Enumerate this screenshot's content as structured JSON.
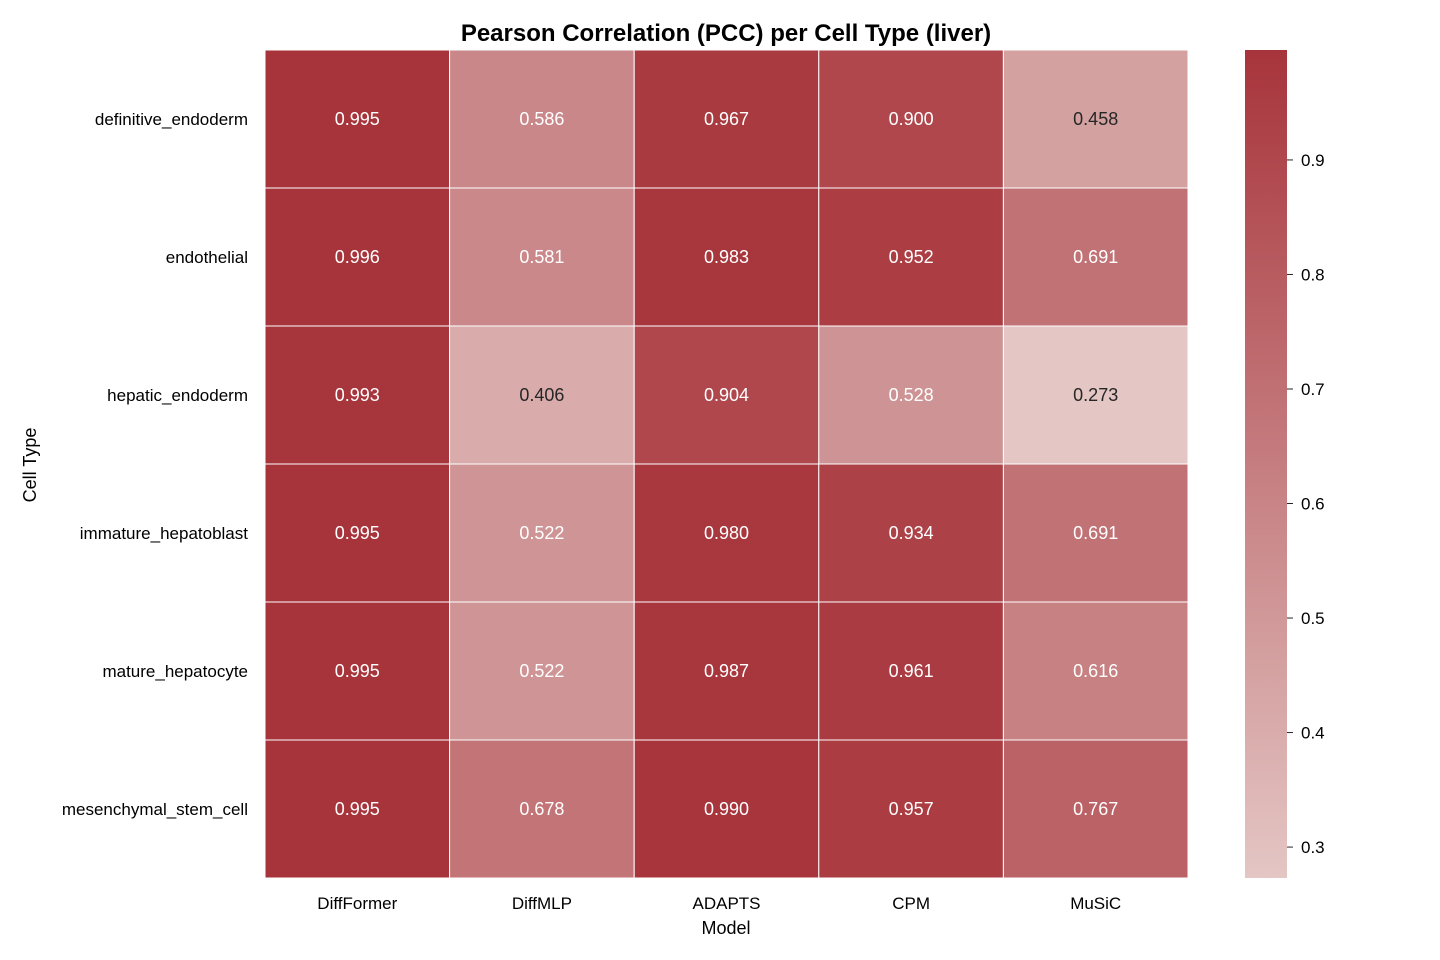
{
  "chart_data": {
    "type": "heatmap",
    "title": "Pearson Correlation (PCC) per Cell Type (liver)",
    "xlabel": "Model",
    "ylabel": "Cell Type",
    "x": [
      "DiffFormer",
      "DiffMLP",
      "ADAPTS",
      "CPM",
      "MuSiC"
    ],
    "y": [
      "definitive_endoderm",
      "endothelial",
      "hepatic_endoderm",
      "immature_hepatoblast",
      "mature_hepatocyte",
      "mesenchymal_stem_cell"
    ],
    "values": [
      [
        0.995,
        0.586,
        0.967,
        0.9,
        0.458
      ],
      [
        0.996,
        0.581,
        0.983,
        0.952,
        0.691
      ],
      [
        0.993,
        0.406,
        0.904,
        0.528,
        0.273
      ],
      [
        0.995,
        0.522,
        0.98,
        0.934,
        0.691
      ],
      [
        0.995,
        0.522,
        0.987,
        0.961,
        0.616
      ],
      [
        0.995,
        0.678,
        0.99,
        0.957,
        0.767
      ]
    ],
    "annotations": [
      [
        "0.995",
        "0.586",
        "0.967",
        "0.900",
        "0.458"
      ],
      [
        "0.996",
        "0.581",
        "0.983",
        "0.952",
        "0.691"
      ],
      [
        "0.993",
        "0.406",
        "0.904",
        "0.528",
        "0.273"
      ],
      [
        "0.995",
        "0.522",
        "0.980",
        "0.934",
        "0.691"
      ],
      [
        "0.995",
        "0.522",
        "0.987",
        "0.961",
        "0.616"
      ],
      [
        "0.995",
        "0.678",
        "0.990",
        "0.957",
        "0.767"
      ]
    ],
    "colorbar": {
      "vmin": 0.273,
      "vmax": 0.996,
      "ticks": [
        "0.3",
        "0.4",
        "0.5",
        "0.6",
        "0.7",
        "0.8",
        "0.9"
      ],
      "color_low": "#e4c6c4",
      "color_high": "#a7343b"
    },
    "grid": false,
    "cell_border_color": "#ffffff"
  }
}
